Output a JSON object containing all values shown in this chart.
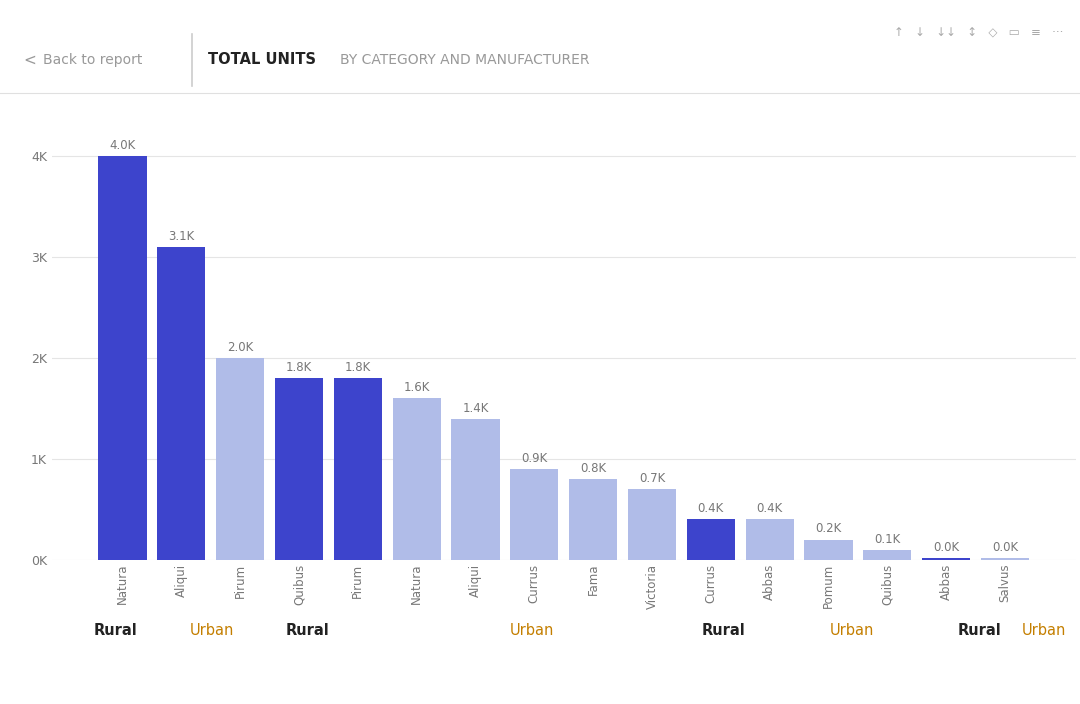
{
  "bars": [
    {
      "label": "Natura",
      "value": 4000,
      "color": "#3d44cc",
      "category": "Rural"
    },
    {
      "label": "Aliqui",
      "value": 3100,
      "color": "#3d44cc",
      "category": "Rural"
    },
    {
      "label": "Pirum",
      "value": 2000,
      "color": "#b0bce8",
      "category": "Urban"
    },
    {
      "label": "Quibus",
      "value": 1800,
      "color": "#3d44cc",
      "category": "Rural"
    },
    {
      "label": "Pirum",
      "value": 1800,
      "color": "#3d44cc",
      "category": "Rural"
    },
    {
      "label": "Natura",
      "value": 1600,
      "color": "#b0bce8",
      "category": "Urban"
    },
    {
      "label": "Aliqui",
      "value": 1400,
      "color": "#b0bce8",
      "category": "Urban"
    },
    {
      "label": "Currus",
      "value": 900,
      "color": "#b0bce8",
      "category": "Urban"
    },
    {
      "label": "Fama",
      "value": 800,
      "color": "#b0bce8",
      "category": "Urban"
    },
    {
      "label": "Victoria",
      "value": 700,
      "color": "#b0bce8",
      "category": "Urban"
    },
    {
      "label": "Currus",
      "value": 400,
      "color": "#3d44cc",
      "category": "Rural"
    },
    {
      "label": "Abbas",
      "value": 400,
      "color": "#b0bce8",
      "category": "Urban"
    },
    {
      "label": "Pomum",
      "value": 200,
      "color": "#b0bce8",
      "category": "Urban"
    },
    {
      "label": "Quibus",
      "value": 100,
      "color": "#b0bce8",
      "category": "Urban"
    },
    {
      "label": "Abbas",
      "value": 15,
      "color": "#3d44cc",
      "category": "Rural"
    },
    {
      "label": "Salvus",
      "value": 15,
      "color": "#b0bce8",
      "category": "Urban"
    }
  ],
  "value_labels": [
    "4.0K",
    "3.1K",
    "2.0K",
    "1.8K",
    "1.8K",
    "1.6K",
    "1.4K",
    "0.9K",
    "0.8K",
    "0.7K",
    "0.4K",
    "0.4K",
    "0.2K",
    "0.1K",
    "0.0K",
    "0.0K"
  ],
  "categories": [
    {
      "label": "Rural",
      "span": [
        0,
        1
      ],
      "color": "#222222",
      "bold": true
    },
    {
      "label": "Urban",
      "span": [
        2,
        2
      ],
      "color": "#c47f00",
      "bold": false
    },
    {
      "label": "Rural",
      "span": [
        3,
        4
      ],
      "color": "#222222",
      "bold": true
    },
    {
      "label": "Urban",
      "span": [
        5,
        9
      ],
      "color": "#c47f00",
      "bold": false
    },
    {
      "label": "Rural",
      "span": [
        10,
        10
      ],
      "color": "#222222",
      "bold": true
    },
    {
      "label": "Urban",
      "span": [
        11,
        13
      ],
      "color": "#c47f00",
      "bold": false
    },
    {
      "label": "Rural",
      "span": [
        14,
        14
      ],
      "color": "#222222",
      "bold": true
    },
    {
      "label": "Urban",
      "span": [
        15,
        15
      ],
      "color": "#c47f00",
      "bold": false
    }
  ],
  "ylim": [
    0,
    4400
  ],
  "yticks": [
    0,
    1000,
    2000,
    3000,
    4000
  ],
  "ytick_labels": [
    "0K",
    "1K",
    "2K",
    "3K",
    "4K"
  ],
  "background_color": "#ffffff",
  "grid_color": "#e5e5e5",
  "value_label_color": "#777777",
  "tick_label_color": "#777777",
  "bar_gap": 0.18
}
